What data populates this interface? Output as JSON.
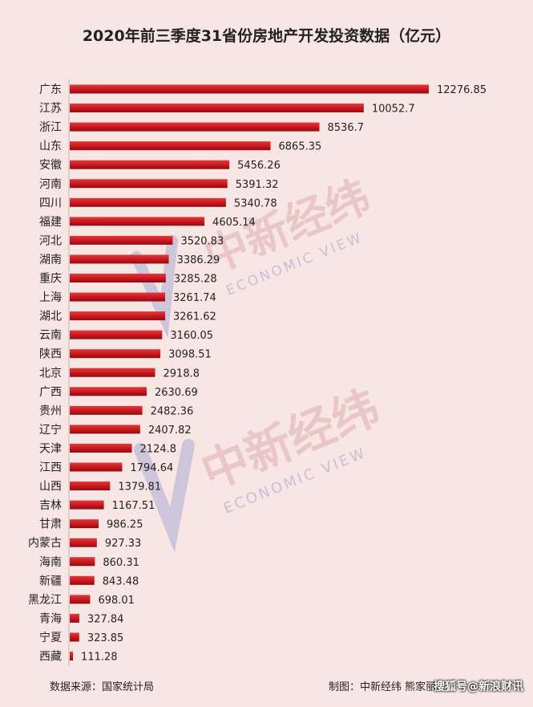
{
  "chart_data": {
    "type": "bar",
    "title": "2020年前三季度31省份房地产开发投资数据（亿元）",
    "categories": [
      "广东",
      "江苏",
      "浙江",
      "山东",
      "安徽",
      "河南",
      "四川",
      "福建",
      "河北",
      "湖南",
      "重庆",
      "上海",
      "湖北",
      "云南",
      "陕西",
      "北京",
      "广西",
      "贵州",
      "辽宁",
      "天津",
      "江西",
      "山西",
      "吉林",
      "甘肃",
      "内蒙古",
      "海南",
      "新疆",
      "黑龙江",
      "青海",
      "宁夏",
      "西藏"
    ],
    "values": [
      12276.85,
      10052.7,
      8536.7,
      6865.35,
      5456.26,
      5391.32,
      5340.78,
      4605.14,
      3520.83,
      3386.29,
      3285.28,
      3261.74,
      3261.62,
      3160.05,
      3098.51,
      2918.8,
      2630.69,
      2482.36,
      2407.82,
      2124.8,
      1794.64,
      1379.81,
      1167.51,
      986.25,
      927.33,
      860.31,
      843.48,
      698.01,
      327.84,
      323.85,
      111.28
    ],
    "value_labels": [
      "12276.85",
      "10052.7",
      "8536.7",
      "6865.35",
      "5456.26",
      "5391.32",
      "5340.78",
      "4605.14",
      "3520.83",
      "3386.29",
      "3285.28",
      "3261.74",
      "3261.62",
      "3160.05",
      "3098.51",
      "2918.8",
      "2630.69",
      "2482.36",
      "2407.82",
      "2124.8",
      "1794.64",
      "1379.81",
      "1167.51",
      "986.25",
      "927.33",
      "860.31",
      "843.48",
      "698.01",
      "327.84",
      "323.85",
      "111.28"
    ],
    "orientation": "horizontal",
    "bar_color": "#c8161d",
    "grid": false,
    "legend": "none"
  },
  "footer": {
    "source": "数据来源：国家统计局",
    "credit": "制图：中新经纬 熊家丽",
    "platform": "搜狐号@新浪财讯"
  },
  "watermark": {
    "cn": "中新经纬",
    "en": "ECONOMIC VIEW"
  }
}
